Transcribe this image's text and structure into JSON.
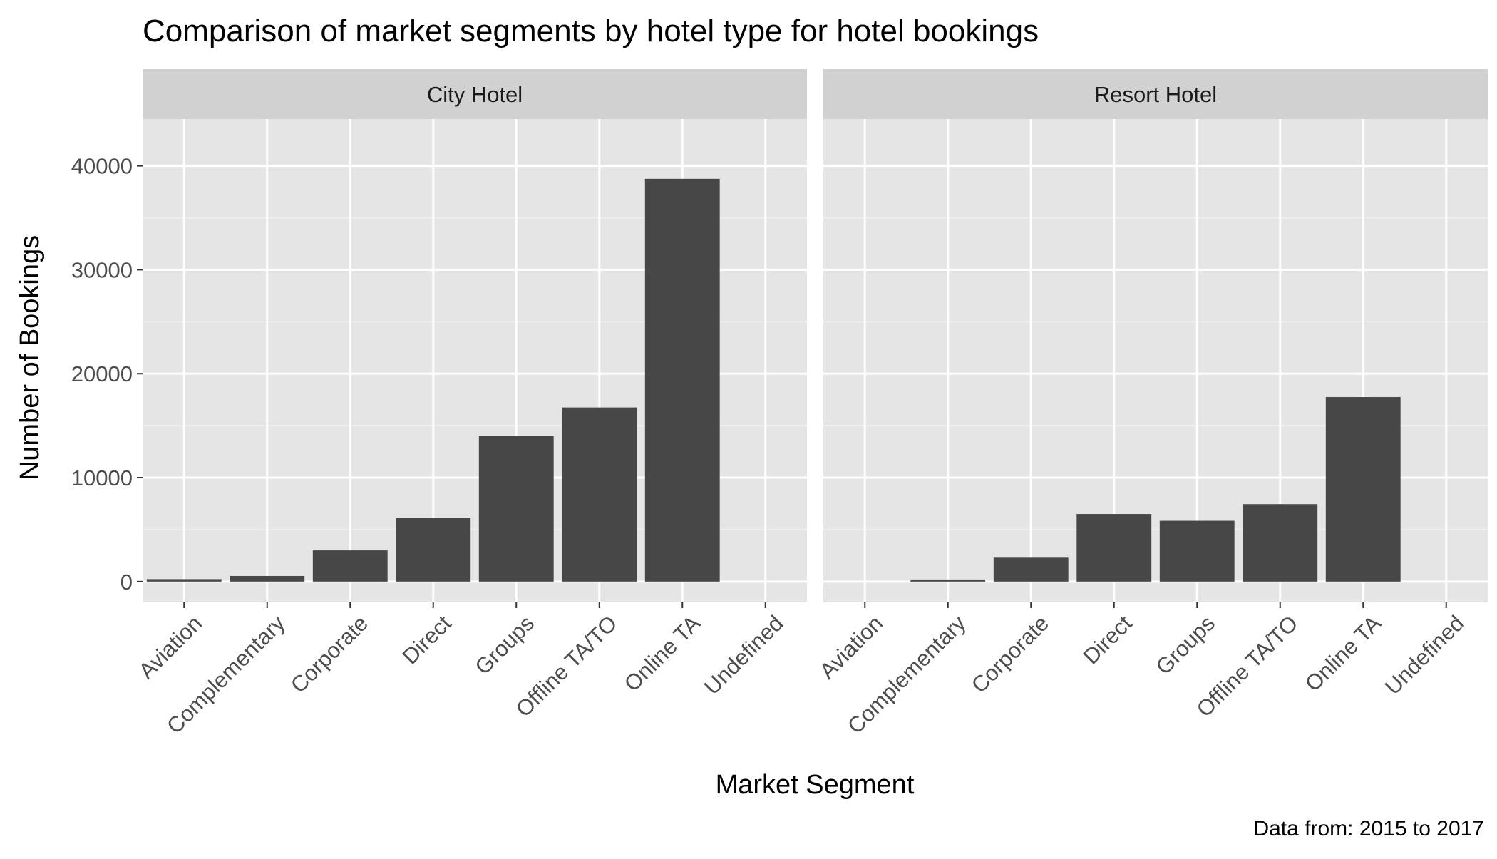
{
  "chart_data": {
    "type": "bar",
    "title": "Comparison of market segments by hotel type for hotel bookings",
    "xlabel": "Market Segment",
    "ylabel": "Number of Bookings",
    "caption": "Data from: 2015 to 2017",
    "categories": [
      "Aviation",
      "Complementary",
      "Corporate",
      "Direct",
      "Groups",
      "Offline TA/TO",
      "Online TA",
      "Undefined"
    ],
    "ylim": [
      -2000,
      44500
    ],
    "yticks": [
      0,
      10000,
      20000,
      30000,
      40000
    ],
    "grid": true,
    "bar_color": "#474747",
    "panel_background": "#e5e5e5",
    "strip_background": "#d1d1d1",
    "panels": [
      {
        "name": "City Hotel",
        "values": [
          235,
          540,
          3000,
          6100,
          14000,
          16750,
          38750,
          0
        ]
      },
      {
        "name": "Resort Hotel",
        "values": [
          0,
          200,
          2300,
          6500,
          5850,
          7450,
          17750,
          0
        ]
      }
    ]
  }
}
